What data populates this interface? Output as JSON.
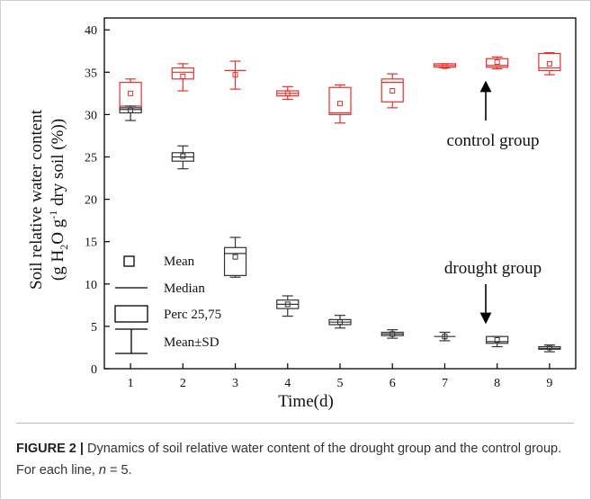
{
  "chart_data": {
    "type": "box",
    "y_label": "Soil relative water content",
    "y_label_units": [
      "(g H",
      "2",
      "O g",
      "-1",
      " dry soil (%))"
    ],
    "x_label": "Time(d)",
    "x": [
      1,
      2,
      3,
      4,
      5,
      6,
      7,
      8,
      9
    ],
    "xlim": [
      0.5,
      9.5
    ],
    "xticks": [
      1,
      2,
      3,
      4,
      5,
      6,
      7,
      8,
      9
    ],
    "ylim": [
      0,
      41.4
    ],
    "yticks": [
      0,
      5,
      10,
      15,
      20,
      25,
      30,
      35,
      40
    ],
    "legend": [
      "Mean",
      "Median",
      "Perc 25,75",
      "Mean±SD"
    ],
    "series": [
      {
        "name": "control group",
        "color": "#e8302c",
        "whisker_low": [
          30.5,
          32.8,
          33,
          31.8,
          29,
          30.8,
          35.5,
          35.4,
          34.7
        ],
        "q1": [
          30.5,
          34.2,
          35.2,
          32.2,
          30,
          31.5,
          35.6,
          35.6,
          35.2
        ],
        "median": [
          31,
          35,
          35.2,
          32.5,
          30.2,
          33.8,
          35.8,
          35.8,
          35.5
        ],
        "q3": [
          33.8,
          35.5,
          35.2,
          32.8,
          33.2,
          34.2,
          36,
          36.6,
          37.2
        ],
        "whisker_high": [
          34.2,
          36,
          36.3,
          33.3,
          33.5,
          34.8,
          36,
          36.8,
          37.3
        ],
        "mean": [
          32.5,
          34.5,
          34.7,
          32.5,
          31.3,
          32.8,
          35.7,
          36.2,
          36
        ]
      },
      {
        "name": "drought group",
        "color": "#333333",
        "whisker_low": [
          29.3,
          23.6,
          10.8,
          6.2,
          4.8,
          3.6,
          3.3,
          2.6,
          2
        ],
        "q1": [
          30.2,
          24.5,
          11,
          7.1,
          5.2,
          3.9,
          3.8,
          3,
          2.3
        ],
        "median": [
          30.6,
          25,
          13.6,
          7.6,
          5.5,
          4.1,
          3.8,
          3.2,
          2.4
        ],
        "q3": [
          30.8,
          25.5,
          14.3,
          8.1,
          5.8,
          4.3,
          3.8,
          3.8,
          2.6
        ],
        "whisker_high": [
          31,
          26.3,
          15.5,
          8.6,
          6.3,
          4.6,
          4.3,
          3.8,
          2.8
        ],
        "mean": [
          30.5,
          25.1,
          13.2,
          7.6,
          5.5,
          4.1,
          3.8,
          3.4,
          2.5
        ]
      }
    ]
  },
  "caption": {
    "label": "FIGURE 2 |",
    "text": "Dynamics of soil relative water content of the drought group and the control group. For each line, ",
    "n": "n",
    "tail": " = 5."
  }
}
